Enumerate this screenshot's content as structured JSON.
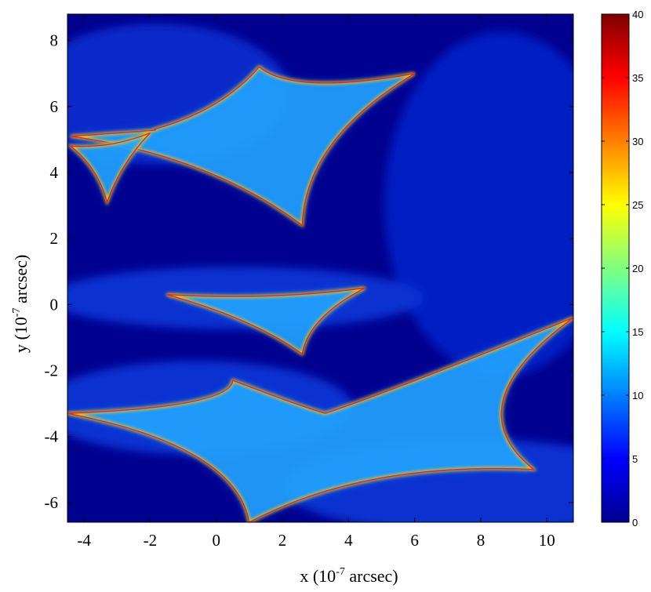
{
  "chart_data": {
    "type": "heatmap",
    "title": "",
    "x_range": [
      -4.5,
      10.8
    ],
    "y_range": [
      -6.6,
      8.8
    ],
    "x_ticks": [
      -4,
      -2,
      0,
      2,
      4,
      6,
      8,
      10
    ],
    "y_ticks": [
      -6,
      -4,
      -2,
      0,
      2,
      4,
      6,
      8
    ],
    "xlabel": {
      "prefix": "x (10",
      "exponent": "-7",
      "suffix": " arcsec)"
    },
    "ylabel": {
      "prefix": "y (10",
      "exponent": "-7",
      "suffix": " arcsec)"
    },
    "colormap": "jet",
    "colorbar": {
      "range": [
        0,
        40
      ],
      "ticks": [
        0,
        5,
        10,
        15,
        20,
        25,
        30,
        35,
        40
      ]
    },
    "grid": false,
    "caustic_cusps": [
      {
        "name": "upper",
        "points": [
          [
            -4.4,
            5.1
          ],
          [
            -1.9,
            5.3
          ],
          [
            1.3,
            7.2
          ],
          [
            6.0,
            7.0
          ],
          [
            2.6,
            2.4
          ]
        ]
      },
      {
        "name": "upper-left",
        "points": [
          [
            -4.4,
            4.8
          ],
          [
            -2.0,
            5.2
          ],
          [
            -3.3,
            3.1
          ]
        ]
      },
      {
        "name": "middle",
        "points": [
          [
            -1.5,
            0.3
          ],
          [
            4.5,
            0.5
          ],
          [
            2.6,
            -1.5
          ]
        ]
      },
      {
        "name": "lower",
        "points": [
          [
            -4.5,
            -3.3
          ],
          [
            0.5,
            -2.3
          ],
          [
            3.3,
            -3.3
          ],
          [
            10.8,
            -0.4
          ],
          [
            9.6,
            -5.0
          ],
          [
            1.0,
            -6.6
          ]
        ]
      }
    ]
  }
}
